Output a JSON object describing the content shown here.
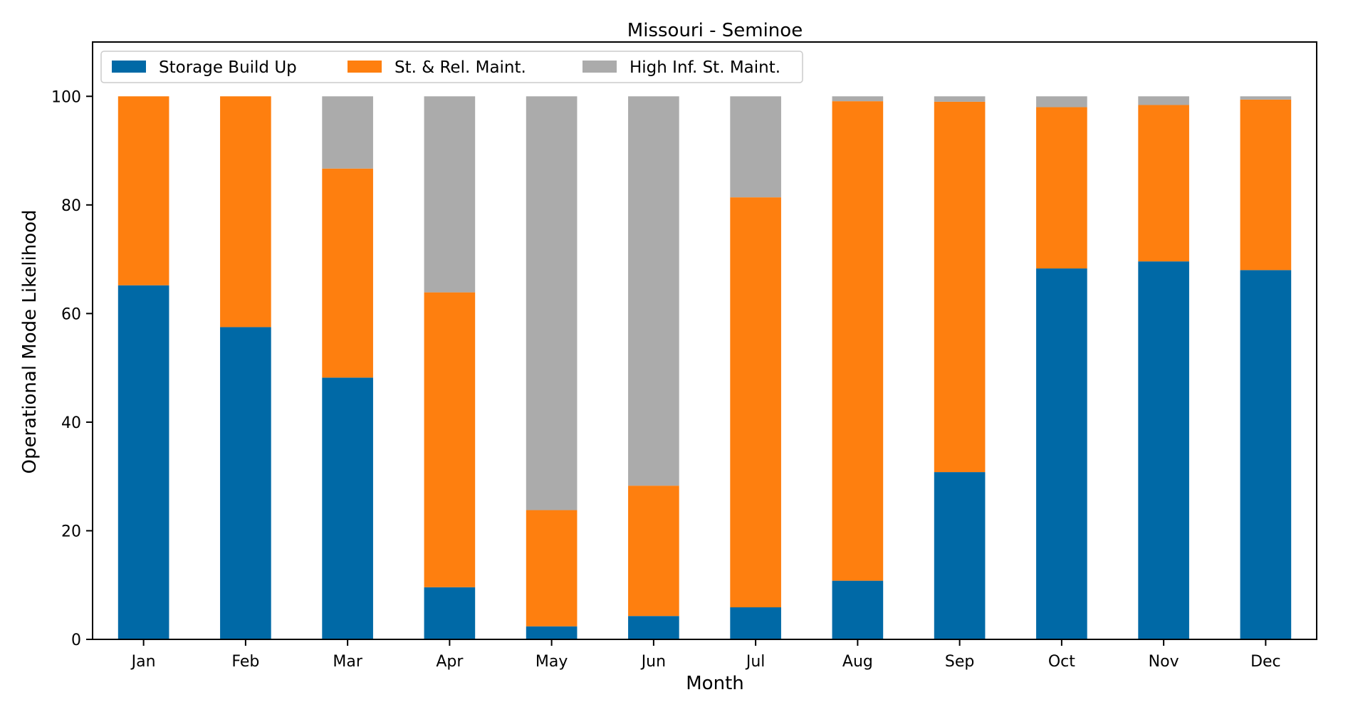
{
  "chart_data": {
    "type": "bar",
    "stacked": true,
    "title": "Missouri - Seminoe",
    "xlabel": "Month",
    "ylabel": "Operational Mode Likelihood",
    "ylim": [
      0,
      110
    ],
    "yticks": [
      0,
      20,
      40,
      60,
      80,
      100
    ],
    "grid": false,
    "legend_position": "top-left",
    "categories": [
      "Jan",
      "Feb",
      "Mar",
      "Apr",
      "May",
      "Jun",
      "Jul",
      "Aug",
      "Sep",
      "Oct",
      "Nov",
      "Dec"
    ],
    "series": [
      {
        "name": "Storage Build Up",
        "color": "#0069a6",
        "values": [
          65.2,
          57.5,
          48.2,
          9.6,
          2.4,
          4.3,
          5.9,
          10.8,
          30.8,
          68.3,
          69.6,
          68.0
        ]
      },
      {
        "name": "St. & Rel. Maint.",
        "color": "#fe7f0f",
        "values": [
          34.8,
          42.5,
          38.5,
          54.3,
          21.4,
          24.0,
          75.5,
          88.3,
          68.2,
          29.7,
          28.8,
          31.4
        ]
      },
      {
        "name": "High Inf. St. Maint.",
        "color": "#ababab",
        "values": [
          0.0,
          0.0,
          13.3,
          36.1,
          76.2,
          71.7,
          18.6,
          0.9,
          1.0,
          2.0,
          1.6,
          0.6
        ]
      }
    ]
  }
}
